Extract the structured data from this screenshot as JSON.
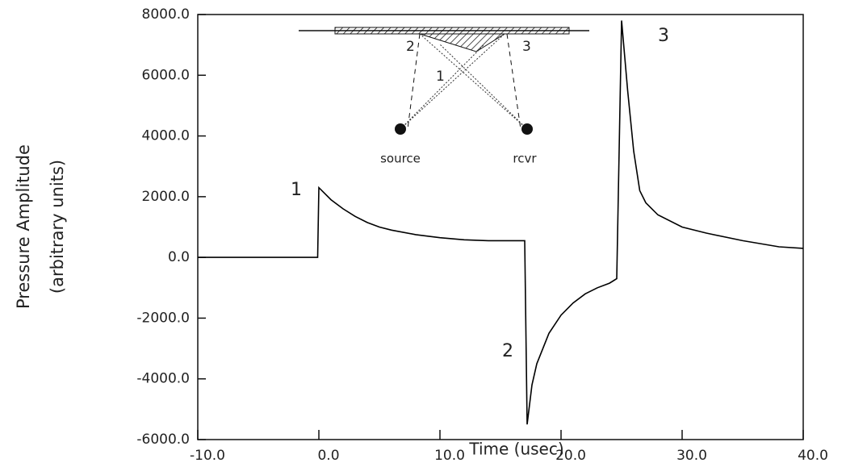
{
  "chart_data": {
    "type": "line",
    "xlabel": "Time (usec)",
    "ylabel": [
      "Pressure Amplitude",
      "(arbitrary units)"
    ],
    "x": [
      -10,
      -0.1,
      0,
      1,
      2,
      3,
      4,
      5,
      6,
      8,
      10,
      12,
      14,
      17,
      17.2,
      17.6,
      18,
      19,
      20,
      21,
      22,
      23,
      24,
      24.6,
      25,
      25.5,
      26,
      26.5,
      27,
      28,
      30,
      32,
      35,
      38,
      40
    ],
    "series": [
      {
        "color": "#000000",
        "values": [
          0,
          0,
          2300,
          1900,
          1600,
          1350,
          1150,
          1000,
          900,
          750,
          650,
          580,
          550,
          550,
          -5500,
          -4200,
          -3500,
          -2500,
          -1900,
          -1500,
          -1200,
          -1000,
          -850,
          -700,
          7800,
          5500,
          3500,
          2200,
          1800,
          1400,
          1000,
          800,
          550,
          350,
          300
        ]
      }
    ],
    "xlim": [
      -10,
      40
    ],
    "xticks": [
      {
        "value": -10,
        "label": "-10.0"
      },
      {
        "value": 0,
        "label": "0.0"
      },
      {
        "value": 10,
        "label": "10.0"
      },
      {
        "value": 20,
        "label": "20.0"
      },
      {
        "value": 30,
        "label": "30.0"
      },
      {
        "value": 40,
        "label": "40.0"
      }
    ],
    "ylim": [
      -6000,
      8000
    ],
    "yticks": [
      {
        "value": -6000,
        "label": "-6000.0"
      },
      {
        "value": -4000,
        "label": "-4000.0"
      },
      {
        "value": -2000,
        "label": "-2000.0"
      },
      {
        "value": 0,
        "label": "0.0"
      },
      {
        "value": 2000,
        "label": "2000.0"
      },
      {
        "value": 4000,
        "label": "4000.0"
      },
      {
        "value": 6000,
        "label": "6000.0"
      },
      {
        "value": 8000,
        "label": "8000.0"
      }
    ],
    "annotations": [
      "1",
      "2",
      "3"
    ],
    "inset_labels": [
      "2",
      "1",
      "3",
      "source",
      "rcvr"
    ]
  }
}
